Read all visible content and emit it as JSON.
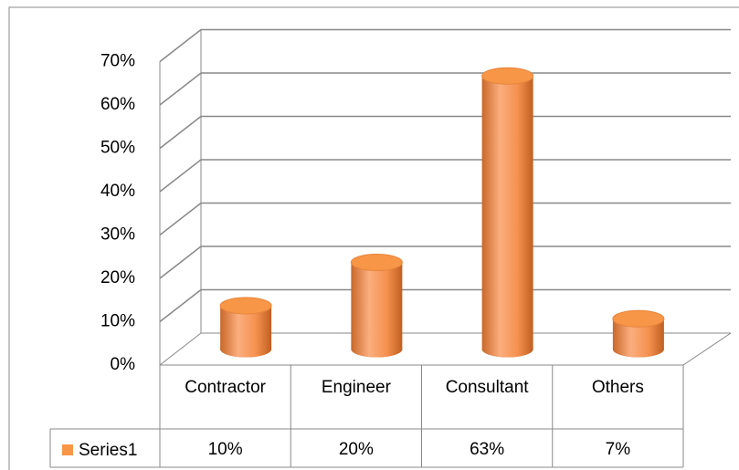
{
  "chart_data": {
    "type": "bar3d",
    "categories": [
      "Contractor",
      "Engineer",
      "Consultant",
      "Others"
    ],
    "series": [
      {
        "name": "Series1",
        "color": "#f79646",
        "values": [
          10,
          20,
          63,
          7
        ],
        "value_labels": [
          "10%",
          "20%",
          "63%",
          "7%"
        ]
      }
    ],
    "ylim": [
      0,
      70
    ],
    "yticks": [
      {
        "value": 0,
        "label": "0%"
      },
      {
        "value": 10,
        "label": "10%"
      },
      {
        "value": 20,
        "label": "20%"
      },
      {
        "value": 30,
        "label": "30%"
      },
      {
        "value": 40,
        "label": "40%"
      },
      {
        "value": 50,
        "label": "50%"
      },
      {
        "value": 60,
        "label": "60%"
      },
      {
        "value": 70,
        "label": "70%"
      }
    ],
    "grid": true,
    "data_table": true
  }
}
